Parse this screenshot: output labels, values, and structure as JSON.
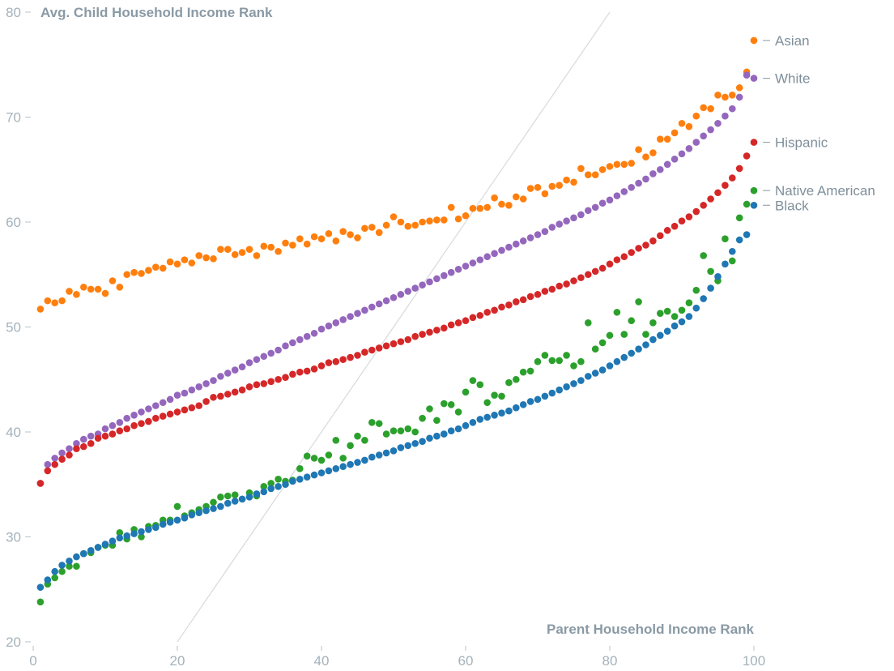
{
  "chart_data": {
    "type": "scatter",
    "ylabel": "Avg. Child Household Income Rank",
    "xlabel": "Parent Household Income Rank",
    "xlim": [
      0,
      100
    ],
    "ylim": [
      20,
      80
    ],
    "x_ticks": [
      "0",
      "20",
      "40",
      "60",
      "80",
      "100"
    ],
    "y_ticks": [
      "20",
      "30",
      "40",
      "50",
      "60",
      "70",
      "80"
    ],
    "reference_line": {
      "from": [
        20,
        20
      ],
      "to": [
        80,
        80
      ],
      "color": "#d8dde0"
    },
    "grid": false,
    "legend_placement": "right, at end of each series",
    "series": [
      {
        "name": "Asian",
        "color": "#ff7f0e",
        "legend_y": 77.3,
        "y": [
          51.7,
          52.5,
          52.3,
          52.5,
          53.4,
          53.1,
          53.8,
          53.6,
          53.6,
          53.2,
          54.4,
          53.8,
          55.0,
          55.2,
          55.1,
          55.4,
          55.7,
          55.6,
          56.2,
          56.0,
          56.4,
          56.1,
          56.8,
          56.6,
          56.5,
          57.4,
          57.4,
          56.9,
          57.1,
          57.4,
          56.8,
          57.7,
          57.6,
          57.2,
          58.0,
          57.8,
          58.4,
          57.9,
          58.6,
          58.4,
          58.9,
          58.2,
          59.1,
          58.8,
          58.5,
          59.4,
          59.5,
          59.0,
          59.7,
          60.5,
          60.0,
          59.6,
          59.7,
          60.0,
          60.1,
          60.2,
          60.2,
          61.4,
          60.3,
          60.6,
          61.3,
          61.3,
          61.4,
          62.3,
          61.7,
          61.6,
          62.4,
          62.2,
          63.2,
          63.3,
          62.7,
          63.4,
          63.5,
          64.0,
          63.8,
          65.1,
          64.5,
          64.5,
          65.0,
          65.3,
          65.5,
          65.5,
          65.6,
          66.9,
          66.2,
          66.6,
          67.9,
          67.9,
          68.5,
          69.4,
          69.1,
          70.1,
          70.9,
          70.8,
          72.1,
          71.9,
          72.1,
          72.8,
          74.3
        ]
      },
      {
        "name": "White",
        "color": "#9467bd",
        "legend_y": 73.7,
        "y": [
          35.1,
          36.9,
          37.5,
          38.0,
          38.4,
          38.9,
          39.3,
          39.6,
          39.8,
          40.3,
          40.6,
          40.9,
          41.3,
          41.6,
          41.9,
          42.2,
          42.5,
          42.8,
          43.1,
          43.5,
          43.7,
          44.0,
          44.3,
          44.6,
          44.9,
          45.3,
          45.6,
          45.9,
          46.2,
          46.6,
          46.9,
          47.2,
          47.5,
          47.8,
          48.2,
          48.5,
          48.8,
          49.1,
          49.4,
          49.8,
          50.1,
          50.4,
          50.7,
          51.0,
          51.3,
          51.6,
          51.9,
          52.2,
          52.5,
          52.8,
          53.1,
          53.4,
          53.7,
          54.0,
          54.3,
          54.6,
          54.9,
          55.2,
          55.5,
          55.8,
          56.1,
          56.4,
          56.7,
          57.0,
          57.3,
          57.6,
          57.9,
          58.2,
          58.5,
          58.8,
          59.1,
          59.5,
          59.8,
          60.1,
          60.4,
          60.7,
          61.1,
          61.4,
          61.8,
          62.1,
          62.5,
          62.9,
          63.3,
          63.7,
          64.1,
          64.6,
          65.0,
          65.5,
          66.0,
          66.5,
          67.0,
          67.6,
          68.2,
          68.8,
          69.4,
          70.1,
          70.8,
          71.9,
          74.0
        ]
      },
      {
        "name": "Hispanic",
        "color": "#d62728",
        "legend_y": 67.6,
        "y": [
          35.1,
          36.3,
          36.9,
          37.4,
          37.8,
          38.4,
          38.6,
          38.9,
          39.4,
          39.6,
          39.8,
          40.1,
          40.3,
          40.6,
          40.8,
          41.0,
          41.3,
          41.5,
          41.7,
          41.9,
          42.1,
          42.3,
          42.5,
          42.9,
          43.3,
          43.4,
          43.6,
          43.8,
          44.0,
          44.3,
          44.5,
          44.6,
          44.8,
          45.0,
          45.2,
          45.5,
          45.7,
          45.8,
          46.0,
          46.3,
          46.6,
          46.7,
          46.9,
          47.1,
          47.3,
          47.6,
          47.8,
          48.0,
          48.2,
          48.4,
          48.6,
          48.8,
          49.1,
          49.3,
          49.5,
          49.7,
          49.9,
          50.2,
          50.4,
          50.6,
          50.9,
          51.1,
          51.4,
          51.6,
          51.9,
          52.1,
          52.4,
          52.6,
          52.9,
          53.1,
          53.4,
          53.6,
          53.9,
          54.1,
          54.4,
          54.7,
          55.0,
          55.3,
          55.6,
          56.0,
          56.4,
          56.7,
          57.1,
          57.5,
          57.8,
          58.2,
          58.7,
          59.2,
          59.6,
          60.1,
          60.5,
          61.0,
          61.6,
          62.2,
          62.8,
          63.5,
          64.2,
          65.1,
          66.3
        ]
      },
      {
        "name": "Native American",
        "color": "#2ca02c",
        "legend_y": 63.0,
        "y": [
          23.8,
          25.5,
          26.1,
          26.7,
          27.2,
          27.2,
          28.4,
          28.5,
          29.0,
          29.2,
          29.2,
          30.4,
          29.8,
          30.7,
          30.0,
          31.0,
          31.1,
          31.6,
          31.6,
          32.9,
          32.0,
          32.3,
          32.6,
          32.9,
          33.3,
          33.8,
          33.9,
          34.0,
          33.6,
          34.2,
          33.9,
          34.8,
          35.1,
          35.5,
          35.3,
          35.4,
          36.5,
          37.7,
          37.5,
          37.3,
          37.8,
          39.2,
          37.5,
          38.7,
          39.6,
          39.2,
          40.9,
          40.8,
          39.8,
          40.1,
          40.1,
          40.3,
          40.0,
          41.3,
          42.2,
          41.1,
          42.7,
          42.6,
          41.9,
          43.8,
          44.9,
          44.5,
          42.8,
          43.5,
          43.4,
          44.7,
          45.0,
          45.7,
          45.8,
          46.7,
          47.3,
          46.8,
          46.8,
          47.3,
          46.3,
          46.7,
          50.4,
          47.9,
          48.5,
          49.2,
          51.4,
          49.3,
          50.6,
          52.4,
          49.3,
          50.4,
          51.3,
          51.5,
          51.0,
          51.6,
          52.3,
          53.5,
          56.8,
          55.3,
          54.4,
          58.4,
          56.3,
          60.4,
          61.7
        ]
      },
      {
        "name": "Black",
        "color": "#1f77b4",
        "legend_y": 61.6,
        "y": [
          25.2,
          25.9,
          26.7,
          27.3,
          27.7,
          28.1,
          28.4,
          28.7,
          29.0,
          29.3,
          29.6,
          29.9,
          30.1,
          30.3,
          30.5,
          30.7,
          30.9,
          31.2,
          31.4,
          31.6,
          31.8,
          32.1,
          32.3,
          32.5,
          32.7,
          32.9,
          33.2,
          33.4,
          33.6,
          33.8,
          34.1,
          34.3,
          34.6,
          34.8,
          35.0,
          35.3,
          35.5,
          35.7,
          35.9,
          36.1,
          36.3,
          36.5,
          36.7,
          36.9,
          37.1,
          37.3,
          37.6,
          37.8,
          38.0,
          38.2,
          38.5,
          38.7,
          38.9,
          39.1,
          39.4,
          39.6,
          39.8,
          40.1,
          40.3,
          40.6,
          40.9,
          41.2,
          41.4,
          41.6,
          41.8,
          42.0,
          42.3,
          42.6,
          42.9,
          43.1,
          43.4,
          43.7,
          44.0,
          44.3,
          44.6,
          44.9,
          45.3,
          45.6,
          45.9,
          46.3,
          46.7,
          47.1,
          47.5,
          47.9,
          48.3,
          48.8,
          49.2,
          49.6,
          50.1,
          50.5,
          51.0,
          51.8,
          52.7,
          53.7,
          54.8,
          56.0,
          57.2,
          58.3,
          58.8
        ]
      }
    ]
  }
}
